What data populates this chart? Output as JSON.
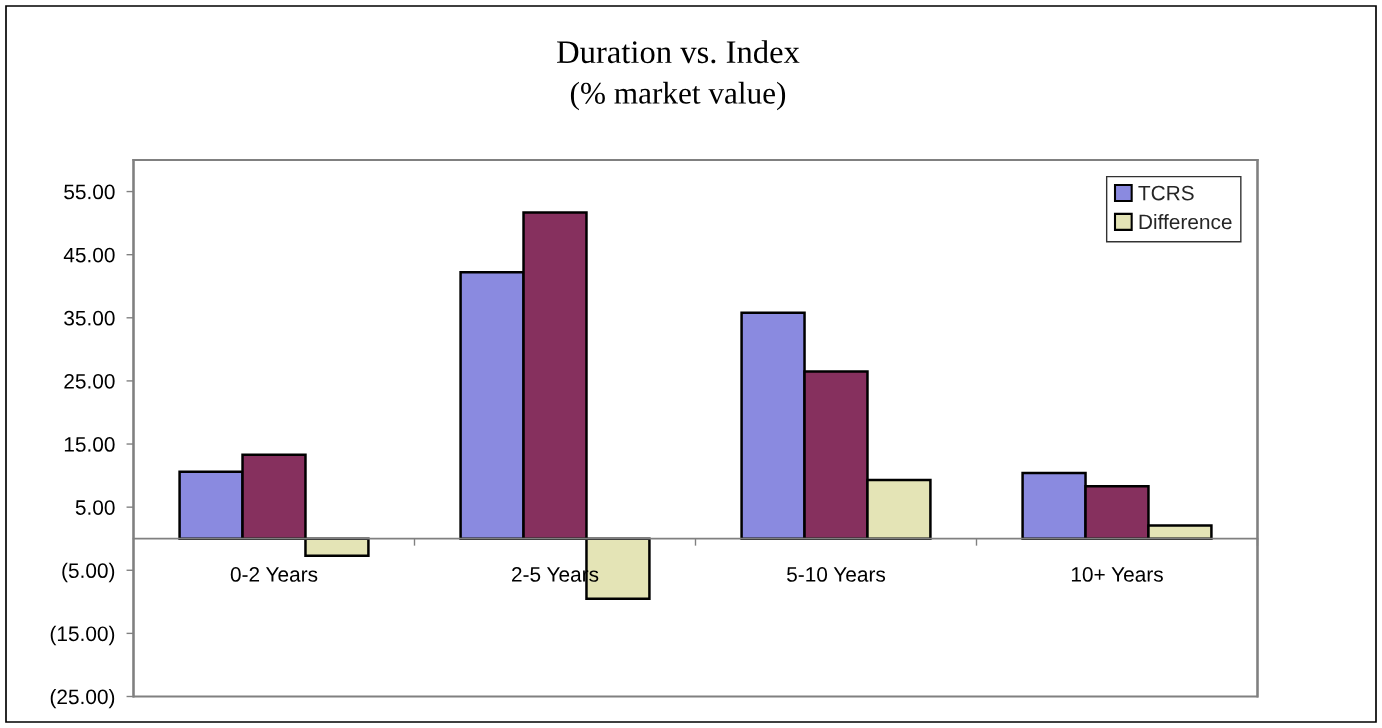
{
  "chart_data": {
    "type": "bar",
    "title": "Duration vs. Index",
    "subtitle": "(% market value)",
    "categories": [
      "0-2 Years",
      "2-5 Years",
      "5-10 Years",
      "10+ Years"
    ],
    "series": [
      {
        "name": "TCRS",
        "color": "#8a8ae0",
        "values": [
          10.6,
          42.2,
          35.8,
          10.4
        ]
      },
      {
        "color": "#86305e",
        "values": [
          13.3,
          51.7,
          26.5,
          8.3
        ]
      },
      {
        "name": "Difference",
        "color": "#e4e4b6",
        "values": [
          -2.7,
          -9.5,
          9.3,
          2.1
        ]
      }
    ],
    "ylim": [
      -25,
      60
    ],
    "yticks": [
      {
        "value": -25,
        "label": "(25.00)"
      },
      {
        "value": -15,
        "label": "(15.00)"
      },
      {
        "value": -5,
        "label": "(5.00)"
      },
      {
        "value": 5,
        "label": "5.00"
      },
      {
        "value": 15,
        "label": "15.00"
      },
      {
        "value": 25,
        "label": "25.00"
      },
      {
        "value": 35,
        "label": "35.00"
      },
      {
        "value": 45,
        "label": "45.00"
      },
      {
        "value": 55,
        "label": "55.00"
      }
    ],
    "legend": "top right"
  }
}
